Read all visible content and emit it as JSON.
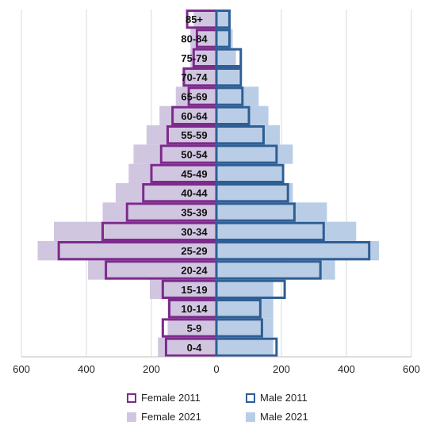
{
  "chart_data": {
    "type": "bar",
    "orientation": "horizontal-pyramid",
    "categories": [
      "0-4",
      "5-9",
      "10-14",
      "15-19",
      "20-24",
      "25-29",
      "30-34",
      "35-39",
      "40-44",
      "45-49",
      "50-54",
      "55-59",
      "60-64",
      "65-69",
      "70-74",
      "75-79",
      "80-84",
      "85+"
    ],
    "series": [
      {
        "name": "Female 2011",
        "side": "left",
        "style": "outline",
        "values": [
          155,
          165,
          145,
          165,
          340,
          485,
          350,
          275,
          225,
          200,
          170,
          150,
          135,
          85,
          100,
          70,
          60,
          90
        ]
      },
      {
        "name": "Male 2011",
        "side": "right",
        "style": "outline",
        "values": [
          185,
          140,
          135,
          210,
          320,
          470,
          330,
          240,
          220,
          205,
          185,
          145,
          100,
          80,
          75,
          75,
          40,
          40
        ]
      },
      {
        "name": "Female 2021",
        "side": "left",
        "style": "fill",
        "values": [
          180,
          150,
          150,
          205,
          395,
          550,
          500,
          350,
          310,
          270,
          255,
          215,
          175,
          125,
          105,
          80,
          80,
          70
        ]
      },
      {
        "name": "Male 2021",
        "side": "right",
        "style": "fill",
        "values": [
          175,
          175,
          175,
          175,
          365,
          500,
          430,
          340,
          235,
          200,
          235,
          195,
          160,
          130,
          70,
          60,
          50,
          45
        ]
      }
    ],
    "xticks": [
      "600",
      "400",
      "200",
      "0",
      "200",
      "400",
      "600"
    ],
    "xlim": [
      -600,
      600
    ],
    "grid": true,
    "legend_position": "bottom",
    "colors": {
      "Female 2011": "#7d2a8c",
      "Female 2021": "#d1c6e0",
      "Male 2011": "#2e5e94",
      "Male 2021": "#b9cde6",
      "grid": "#d9d9d9"
    }
  },
  "legend": {
    "female_2011": "Female 2011",
    "male_2011": "Male 2011",
    "female_2021": "Female 2021",
    "male_2021": "Male 2021"
  }
}
